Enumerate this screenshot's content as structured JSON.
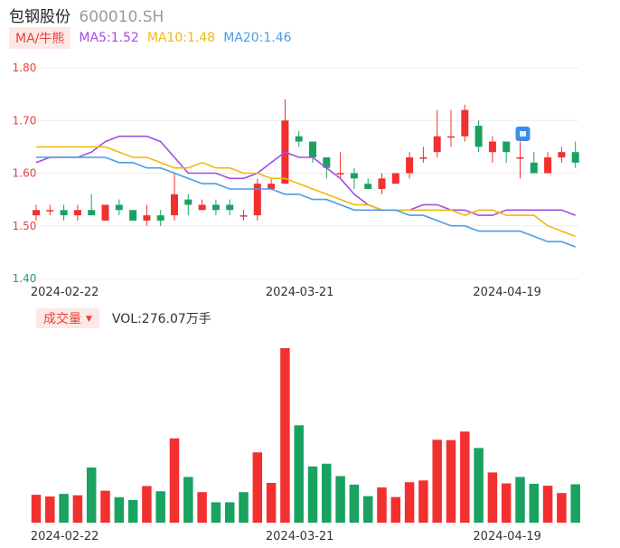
{
  "header": {
    "name": "包钢股份",
    "code": "600010.SH"
  },
  "ma_legend": {
    "toggle_label": "MA/牛熊",
    "items": [
      {
        "label": "MA5:1.52",
        "color": "#a24ee0"
      },
      {
        "label": "MA10:1.48",
        "color": "#f0b90b"
      },
      {
        "label": "MA20:1.46",
        "color": "#4a9de6"
      }
    ]
  },
  "volume_legend": {
    "toggle_label": "成交量",
    "caret": "▼",
    "text": "VOL:276.07万手"
  },
  "colors": {
    "up": "#f23030",
    "down": "#1aa260",
    "grid": "#ececec"
  },
  "chart_data": [
    {
      "type": "candlestick",
      "ylim": [
        1.4,
        1.8
      ],
      "yticks": [
        "1.80",
        "1.70",
        "1.60",
        "1.50",
        "1.40"
      ],
      "xtick_labels": [
        {
          "label": "2024-02-22",
          "index": 2
        },
        {
          "label": "2024-03-21",
          "index": 19
        },
        {
          "label": "2024-04-19",
          "index": 34
        }
      ],
      "candles": [
        {
          "o": 1.52,
          "c": 1.53,
          "h": 1.54,
          "l": 1.51
        },
        {
          "o": 1.53,
          "c": 1.53,
          "h": 1.54,
          "l": 1.52
        },
        {
          "o": 1.53,
          "c": 1.52,
          "h": 1.54,
          "l": 1.51
        },
        {
          "o": 1.52,
          "c": 1.53,
          "h": 1.54,
          "l": 1.51
        },
        {
          "o": 1.53,
          "c": 1.52,
          "h": 1.56,
          "l": 1.52
        },
        {
          "o": 1.51,
          "c": 1.54,
          "h": 1.54,
          "l": 1.51
        },
        {
          "o": 1.54,
          "c": 1.53,
          "h": 1.55,
          "l": 1.52
        },
        {
          "o": 1.53,
          "c": 1.51,
          "h": 1.53,
          "l": 1.51
        },
        {
          "o": 1.51,
          "c": 1.52,
          "h": 1.54,
          "l": 1.5
        },
        {
          "o": 1.52,
          "c": 1.51,
          "h": 1.53,
          "l": 1.5
        },
        {
          "o": 1.52,
          "c": 1.56,
          "h": 1.6,
          "l": 1.51
        },
        {
          "o": 1.55,
          "c": 1.54,
          "h": 1.56,
          "l": 1.52
        },
        {
          "o": 1.53,
          "c": 1.54,
          "h": 1.55,
          "l": 1.53
        },
        {
          "o": 1.54,
          "c": 1.53,
          "h": 1.55,
          "l": 1.52
        },
        {
          "o": 1.54,
          "c": 1.53,
          "h": 1.55,
          "l": 1.52
        },
        {
          "o": 1.52,
          "c": 1.52,
          "h": 1.53,
          "l": 1.51
        },
        {
          "o": 1.52,
          "c": 1.58,
          "h": 1.59,
          "l": 1.51
        },
        {
          "o": 1.57,
          "c": 1.58,
          "h": 1.59,
          "l": 1.57
        },
        {
          "o": 1.58,
          "c": 1.7,
          "h": 1.74,
          "l": 1.58
        },
        {
          "o": 1.67,
          "c": 1.66,
          "h": 1.68,
          "l": 1.65
        },
        {
          "o": 1.66,
          "c": 1.63,
          "h": 1.66,
          "l": 1.62
        },
        {
          "o": 1.63,
          "c": 1.61,
          "h": 1.63,
          "l": 1.59
        },
        {
          "o": 1.6,
          "c": 1.6,
          "h": 1.64,
          "l": 1.59
        },
        {
          "o": 1.6,
          "c": 1.59,
          "h": 1.61,
          "l": 1.57
        },
        {
          "o": 1.58,
          "c": 1.57,
          "h": 1.59,
          "l": 1.57
        },
        {
          "o": 1.57,
          "c": 1.59,
          "h": 1.6,
          "l": 1.56
        },
        {
          "o": 1.58,
          "c": 1.6,
          "h": 1.6,
          "l": 1.58
        },
        {
          "o": 1.6,
          "c": 1.63,
          "h": 1.64,
          "l": 1.59
        },
        {
          "o": 1.63,
          "c": 1.63,
          "h": 1.65,
          "l": 1.62
        },
        {
          "o": 1.64,
          "c": 1.67,
          "h": 1.72,
          "l": 1.63
        },
        {
          "o": 1.67,
          "c": 1.67,
          "h": 1.72,
          "l": 1.65
        },
        {
          "o": 1.67,
          "c": 1.72,
          "h": 1.73,
          "l": 1.66
        },
        {
          "o": 1.69,
          "c": 1.65,
          "h": 1.7,
          "l": 1.64
        },
        {
          "o": 1.64,
          "c": 1.66,
          "h": 1.67,
          "l": 1.62
        },
        {
          "o": 1.66,
          "c": 1.64,
          "h": 1.66,
          "l": 1.62
        },
        {
          "o": 1.63,
          "c": 1.63,
          "h": 1.66,
          "l": 1.59
        },
        {
          "o": 1.62,
          "c": 1.6,
          "h": 1.64,
          "l": 1.6
        },
        {
          "o": 1.6,
          "c": 1.63,
          "h": 1.64,
          "l": 1.6
        },
        {
          "o": 1.63,
          "c": 1.64,
          "h": 1.65,
          "l": 1.62
        },
        {
          "o": 1.64,
          "c": 1.62,
          "h": 1.66,
          "l": 1.61
        }
      ],
      "series": [
        {
          "name": "MA5",
          "color": "#a24ee0",
          "values": [
            1.62,
            1.63,
            1.63,
            1.63,
            1.64,
            1.66,
            1.67,
            1.67,
            1.67,
            1.66,
            1.63,
            1.6,
            1.6,
            1.6,
            1.59,
            1.59,
            1.6,
            1.62,
            1.64,
            1.63,
            1.63,
            1.61,
            1.59,
            1.56,
            1.54,
            1.53,
            1.53,
            1.53,
            1.54,
            1.54,
            1.53,
            1.53,
            1.52,
            1.52,
            1.53,
            1.53,
            1.53,
            1.53,
            1.53,
            1.52
          ]
        },
        {
          "name": "MA10",
          "color": "#f0b90b",
          "values": [
            1.65,
            1.65,
            1.65,
            1.65,
            1.65,
            1.65,
            1.64,
            1.63,
            1.63,
            1.62,
            1.61,
            1.61,
            1.62,
            1.61,
            1.61,
            1.6,
            1.6,
            1.59,
            1.59,
            1.58,
            1.57,
            1.56,
            1.55,
            1.54,
            1.54,
            1.53,
            1.53,
            1.53,
            1.53,
            1.53,
            1.53,
            1.52,
            1.53,
            1.53,
            1.52,
            1.52,
            1.52,
            1.5,
            1.49,
            1.48
          ]
        },
        {
          "name": "MA20",
          "color": "#4a9de6",
          "values": [
            1.63,
            1.63,
            1.63,
            1.63,
            1.63,
            1.63,
            1.62,
            1.62,
            1.61,
            1.61,
            1.6,
            1.59,
            1.58,
            1.58,
            1.57,
            1.57,
            1.57,
            1.57,
            1.56,
            1.56,
            1.55,
            1.55,
            1.54,
            1.53,
            1.53,
            1.53,
            1.53,
            1.52,
            1.52,
            1.51,
            1.5,
            1.5,
            1.49,
            1.49,
            1.49,
            1.49,
            1.48,
            1.47,
            1.47,
            1.46
          ]
        }
      ]
    },
    {
      "type": "bar",
      "title": "成交量",
      "xtick_labels": [
        {
          "label": "2024-02-22",
          "index": 2
        },
        {
          "label": "2024-03-21",
          "index": 19
        },
        {
          "label": "2024-04-19",
          "index": 34
        }
      ],
      "ylim": [
        0,
        1000
      ],
      "values": [
        160,
        150,
        165,
        157,
        316,
        183,
        146,
        130,
        210,
        180,
        483,
        262,
        175,
        117,
        117,
        175,
        403,
        228,
        1000,
        558,
        322,
        338,
        267,
        218,
        152,
        202,
        147,
        232,
        242,
        475,
        473,
        522,
        428,
        288,
        225,
        262,
        223,
        212,
        170,
        220
      ],
      "up": [
        true,
        true,
        false,
        true,
        false,
        true,
        false,
        false,
        true,
        false,
        true,
        false,
        true,
        false,
        false,
        false,
        true,
        true,
        true,
        false,
        false,
        false,
        false,
        false,
        false,
        true,
        true,
        true,
        true,
        true,
        true,
        true,
        false,
        true,
        true,
        false,
        false,
        true,
        true,
        false
      ]
    }
  ]
}
